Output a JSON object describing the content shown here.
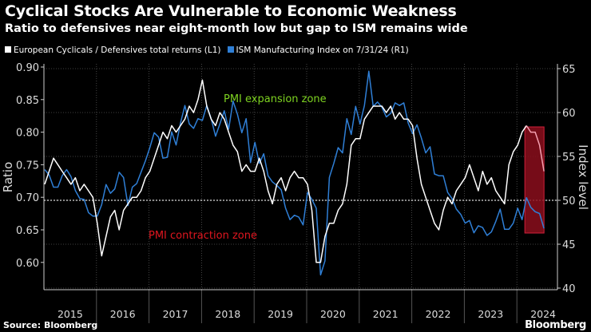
{
  "title": "Cyclical Stocks Are Vulnerable to Economic Weakness",
  "subtitle": "Ratio to defensives near eight-month low but gap to ISM remains wide",
  "footer": {
    "source": "Source: Bloomberg",
    "brand": "Bloomberg"
  },
  "chart_data": {
    "type": "line",
    "title": "Cyclical Stocks Are Vulnerable to Economic Weakness",
    "ylabel_left": "Ratio",
    "ylabel_right": "Index level",
    "ylim_left": [
      0.55,
      0.9
    ],
    "ylim_right": [
      40,
      65
    ],
    "left_ticks": [
      "0.90",
      "0.85",
      "0.80",
      "0.75",
      "0.70",
      "0.65",
      "0.60"
    ],
    "right_ticks": [
      "65",
      "60",
      "55",
      "50",
      "45",
      "40"
    ],
    "x_labels": [
      "2015",
      "2016",
      "2017",
      "2018",
      "2019",
      "2020",
      "2021",
      "2022",
      "2023",
      "2024"
    ],
    "x_start": "2015-01",
    "annotations": {
      "expansion": "PMI expansion zone",
      "contraction": "PMI contraction zone",
      "threshold": 50,
      "highlight_from": "2024-03",
      "highlight_to": "2024-08"
    },
    "colors": {
      "ratio": "#ffffff",
      "ism": "#2f7fd6",
      "expansion": "#7ed321",
      "contraction": "#e0161f",
      "highlight": "#8b0e1c"
    },
    "series": [
      {
        "name": "European Cyclicals / Defensives total returns (L1)",
        "axis": "left",
        "frequency": "monthly",
        "values": [
          0.72,
          0.74,
          0.76,
          0.75,
          0.74,
          0.73,
          0.72,
          0.73,
          0.71,
          0.72,
          0.71,
          0.7,
          0.66,
          0.61,
          0.64,
          0.67,
          0.68,
          0.65,
          0.68,
          0.69,
          0.7,
          0.7,
          0.71,
          0.73,
          0.74,
          0.76,
          0.78,
          0.8,
          0.79,
          0.81,
          0.8,
          0.81,
          0.82,
          0.84,
          0.83,
          0.85,
          0.88,
          0.84,
          0.82,
          0.81,
          0.83,
          0.82,
          0.8,
          0.78,
          0.77,
          0.74,
          0.75,
          0.74,
          0.74,
          0.76,
          0.74,
          0.71,
          0.69,
          0.72,
          0.73,
          0.71,
          0.73,
          0.74,
          0.73,
          0.73,
          0.72,
          0.68,
          0.6,
          0.6,
          0.64,
          0.66,
          0.66,
          0.68,
          0.69,
          0.72,
          0.78,
          0.79,
          0.79,
          0.82,
          0.83,
          0.84,
          0.84,
          0.84,
          0.83,
          0.84,
          0.82,
          0.83,
          0.82,
          0.82,
          0.81,
          0.76,
          0.72,
          0.7,
          0.68,
          0.66,
          0.65,
          0.68,
          0.7,
          0.69,
          0.71,
          0.72,
          0.73,
          0.75,
          0.73,
          0.71,
          0.74,
          0.72,
          0.73,
          0.71,
          0.7,
          0.69,
          0.75,
          0.77,
          0.78,
          0.8,
          0.81,
          0.8,
          0.8,
          0.78,
          0.74
        ]
      },
      {
        "name": "ISM Manufacturing Index on 7/31/24 (R1)",
        "axis": "right",
        "frequency": "monthly",
        "values": [
          53.5,
          52.9,
          51.5,
          51.5,
          52.8,
          53.5,
          52.7,
          51.1,
          50.2,
          50.1,
          48.6,
          48.2,
          48.2,
          49.5,
          51.8,
          50.8,
          51.3,
          53.2,
          52.6,
          49.4,
          51.5,
          51.9,
          53.2,
          54.5,
          56.0,
          57.7,
          57.2,
          54.8,
          54.9,
          57.8,
          56.3,
          58.8,
          60.8,
          58.7,
          58.2,
          59.3,
          59.1,
          60.8,
          59.3,
          57.3,
          58.7,
          60.2,
          58.1,
          61.3,
          59.8,
          57.7,
          59.3,
          54.3,
          56.6,
          54.2,
          55.3,
          52.8,
          52.1,
          51.7,
          51.2,
          49.1,
          47.8,
          48.3,
          48.1,
          47.2,
          50.9,
          50.1,
          49.1,
          41.5,
          43.1,
          52.6,
          54.2,
          56.0,
          55.4,
          59.3,
          57.5,
          60.7,
          58.7,
          60.8,
          64.7,
          60.7,
          61.2,
          60.6,
          59.5,
          59.9,
          61.1,
          60.8,
          61.1,
          58.8,
          57.6,
          58.6,
          57.1,
          55.4,
          56.1,
          53.0,
          52.8,
          52.8,
          50.9,
          50.2,
          49.0,
          48.4,
          47.4,
          47.7,
          46.3,
          47.1,
          46.9,
          46.0,
          46.4,
          47.6,
          49.0,
          46.7,
          46.7,
          47.4,
          49.1,
          47.8,
          50.3,
          49.2,
          48.7,
          48.5,
          46.8
        ]
      }
    ]
  }
}
